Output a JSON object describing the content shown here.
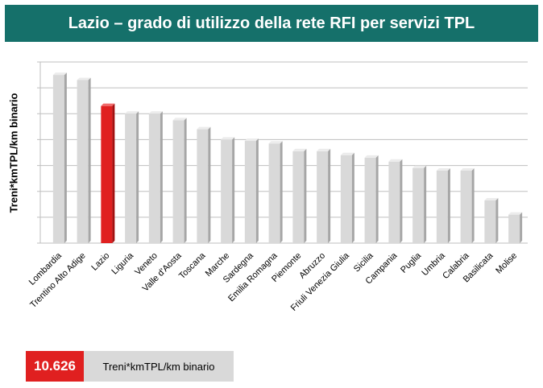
{
  "header": {
    "title": "Lazio – grado di utilizzo della rete RFI per servizi TPL"
  },
  "chart_data": {
    "type": "bar",
    "title": "Lazio – grado di utilizzo della rete RFI per servizi TPL",
    "ylabel": "Treni*kmTPL/km binario",
    "xlabel": "",
    "ylim": [
      0,
      7
    ],
    "grid": true,
    "highlight": "Lazio",
    "categories": [
      "Lombardia",
      "Trentino Alto Adige",
      "Lazio",
      "Liguria",
      "Veneto",
      "Valle d'Aosta",
      "Toscana",
      "Marche",
      "Sardegna",
      "Emilia Romagna",
      "Piemonte",
      "Abruzzo",
      "Friuli Venezia Giulia",
      "Sicilia",
      "Campania",
      "Puglia",
      "Umbria",
      "Calabria",
      "Basilicata",
      "Molise"
    ],
    "values": [
      6.5,
      6.3,
      5.3,
      5.0,
      5.0,
      4.75,
      4.4,
      4.0,
      3.95,
      3.85,
      3.55,
      3.55,
      3.4,
      3.3,
      3.15,
      2.9,
      2.8,
      2.8,
      1.65,
      1.1
    ]
  },
  "colors": {
    "bar": "#d9d9d9",
    "bar_highlight": "#e02020",
    "header_bg": "#15706a"
  },
  "summary": {
    "value": "10.626",
    "unit": "Treni*kmTPL/km binario"
  }
}
